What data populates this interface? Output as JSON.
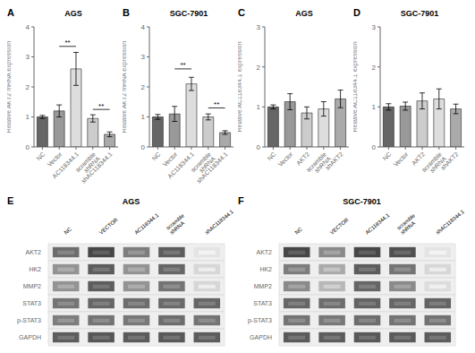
{
  "chart_data": [
    {
      "type": "bar",
      "panel_label": "A",
      "title": "AGS",
      "ylabel": "Relative AKT2 mRNA expression",
      "categories": [
        "NC",
        "Vector",
        "AC118344.1",
        "scramble shRNA",
        "shAC118344.1"
      ],
      "values": [
        1.0,
        1.2,
        2.6,
        0.95,
        0.42
      ],
      "errors": [
        0.05,
        0.2,
        0.55,
        0.12,
        0.08
      ],
      "colors": [
        "#666666",
        "#999999",
        "#dddddd",
        "#cccccc",
        "#aaaaaa"
      ],
      "ylim": [
        0,
        4
      ],
      "yticks": [
        0,
        1,
        2,
        3,
        4
      ],
      "grid": false,
      "annotations": [
        {
          "text": "**",
          "from": "Vector",
          "to": "AC118344.1",
          "y": 3.35
        },
        {
          "text": "**",
          "from": "scramble shRNA",
          "to": "shAC118344.1",
          "y": 1.25
        }
      ]
    },
    {
      "type": "bar",
      "panel_label": "B",
      "title": "SGC-7901",
      "ylabel": "Relative AKT2 mRNA expression",
      "categories": [
        "NC",
        "Vector",
        "AC118344.1",
        "scramble shRNA",
        "shAC118344.1"
      ],
      "values": [
        1.0,
        1.1,
        2.1,
        1.0,
        0.48
      ],
      "errors": [
        0.08,
        0.25,
        0.22,
        0.1,
        0.06
      ],
      "colors": [
        "#666666",
        "#999999",
        "#dddddd",
        "#cccccc",
        "#aaaaaa"
      ],
      "ylim": [
        0,
        4
      ],
      "yticks": [
        0,
        1,
        2,
        3,
        4
      ],
      "grid": false,
      "annotations": [
        {
          "text": "**",
          "from": "Vector",
          "to": "AC118344.1",
          "y": 2.6
        },
        {
          "text": "**",
          "from": "scramble shRNA",
          "to": "shAC118344.1",
          "y": 1.3
        }
      ]
    },
    {
      "type": "bar",
      "panel_label": "C",
      "title": "AGS",
      "ylabel": "Relative AC118344.1 expression",
      "categories": [
        "NC",
        "Vector",
        "AKT2",
        "scramble shRNA",
        "shAKT2"
      ],
      "values": [
        1.0,
        1.13,
        0.85,
        0.95,
        1.2
      ],
      "errors": [
        0.05,
        0.2,
        0.15,
        0.18,
        0.22
      ],
      "colors": [
        "#666666",
        "#999999",
        "#cccccc",
        "#dddddd",
        "#aaaaaa"
      ],
      "ylim": [
        0,
        3
      ],
      "yticks": [
        0,
        1,
        2,
        3
      ],
      "grid": false
    },
    {
      "type": "bar",
      "panel_label": "D",
      "title": "SGC-7901",
      "ylabel": "Relative AC118344.1 expression",
      "categories": [
        "NC",
        "Vector",
        "AKT2",
        "scramble shRNA",
        "shAKT2"
      ],
      "values": [
        1.0,
        1.02,
        1.15,
        1.2,
        0.95
      ],
      "errors": [
        0.08,
        0.1,
        0.2,
        0.25,
        0.12
      ],
      "colors": [
        "#666666",
        "#999999",
        "#cccccc",
        "#dddddd",
        "#aaaaaa"
      ],
      "ylim": [
        0,
        3
      ],
      "yticks": [
        0,
        1,
        2,
        3
      ],
      "grid": false
    },
    {
      "type": "heatmap",
      "panel_label": "E",
      "title": "AGS",
      "columns": [
        "NC",
        "VECTOR",
        "AC118344.1",
        "scramble\nshRNA",
        "shAC118344.1"
      ],
      "rows": [
        "AKT2",
        "HK2",
        "MMP2",
        "STAT3",
        "p-STAT3",
        "GAPDH"
      ],
      "cells": [
        [
          0.65,
          0.82,
          0.58,
          0.72,
          0.12
        ],
        [
          0.48,
          0.72,
          0.48,
          0.68,
          0.18
        ],
        [
          0.48,
          0.72,
          0.48,
          0.62,
          0.18
        ],
        [
          0.62,
          0.68,
          0.65,
          0.67,
          0.68
        ],
        [
          0.58,
          0.62,
          0.6,
          0.65,
          0.62
        ],
        [
          0.72,
          0.75,
          0.73,
          0.74,
          0.72
        ]
      ]
    },
    {
      "type": "heatmap",
      "panel_label": "F",
      "title": "SGC-7901",
      "columns": [
        "NC",
        "VECTOR",
        "AC118344.1",
        "scramble\nshRNA",
        "shAC118344.1"
      ],
      "rows": [
        "AKT2",
        "HK2",
        "MMP2",
        "STAT3",
        "p-STAT3",
        "GAPDH"
      ],
      "cells": [
        [
          0.82,
          0.52,
          0.82,
          0.78,
          0.12
        ],
        [
          0.58,
          0.38,
          0.72,
          0.62,
          0.18
        ],
        [
          0.52,
          0.32,
          0.68,
          0.52,
          0.15
        ],
        [
          0.68,
          0.65,
          0.7,
          0.68,
          0.69
        ],
        [
          0.62,
          0.6,
          0.65,
          0.62,
          0.63
        ],
        [
          0.73,
          0.72,
          0.74,
          0.73,
          0.72
        ]
      ]
    }
  ]
}
